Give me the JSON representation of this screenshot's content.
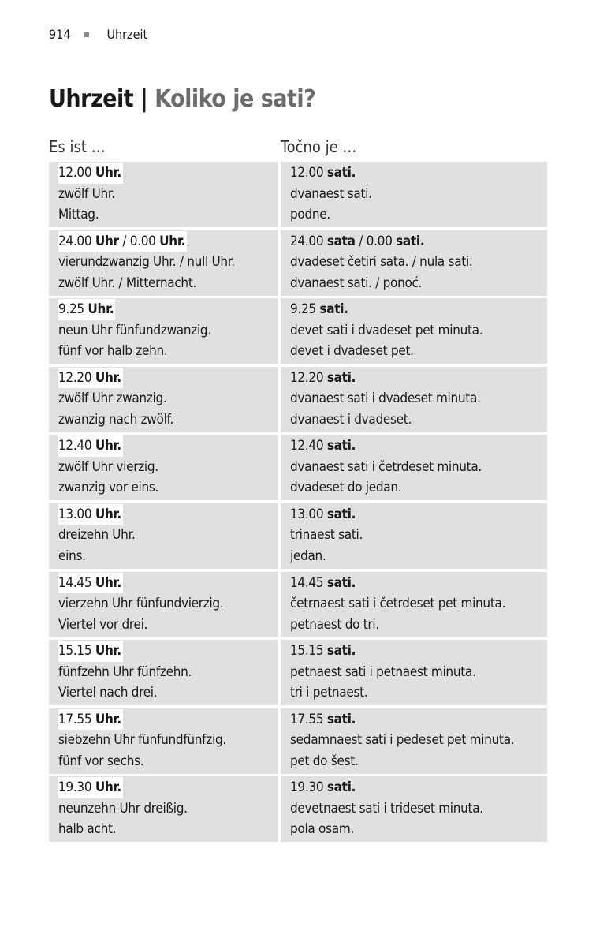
{
  "running_head": {
    "page_number": "914",
    "section": "Uhrzeit"
  },
  "title": {
    "main": "Uhrzeit |",
    "sub": "Koliko je sati?"
  },
  "columns": {
    "left": "Es ist …",
    "right": "Točno je …"
  },
  "rows": [
    {
      "de_head": [
        [
          "12.00 ",
          0
        ],
        [
          "Uhr.",
          1
        ]
      ],
      "de": [
        "zwölf Uhr.",
        "Mittag."
      ],
      "hr_head": [
        [
          "12.00 ",
          0
        ],
        [
          "sati.",
          1
        ]
      ],
      "hr": [
        "dvanaest sati.",
        "podne."
      ]
    },
    {
      "de_head": [
        [
          "24.00 ",
          0
        ],
        [
          "Uhr",
          1
        ],
        [
          " / 0.00 ",
          0
        ],
        [
          "Uhr.",
          1
        ]
      ],
      "de": [
        "vierundzwanzig Uhr. / null Uhr.",
        "zwölf Uhr. / Mitternacht."
      ],
      "hr_head": [
        [
          "24.00 ",
          0
        ],
        [
          "sata",
          1
        ],
        [
          " / 0.00 ",
          0
        ],
        [
          "sati.",
          1
        ]
      ],
      "hr": [
        "dvadeset četiri sata. / nula sati.",
        "dvanaest sati. / ponoć."
      ]
    },
    {
      "de_head": [
        [
          "9.25 ",
          0
        ],
        [
          "Uhr.",
          1
        ]
      ],
      "de": [
        "neun Uhr fünfundzwanzig.",
        "fünf vor halb zehn."
      ],
      "hr_head": [
        [
          "9.25 ",
          0
        ],
        [
          "sati.",
          1
        ]
      ],
      "hr": [
        "devet sati i dvadeset pet minuta.",
        "devet i dvadeset pet."
      ]
    },
    {
      "de_head": [
        [
          "12.20 ",
          0
        ],
        [
          "Uhr.",
          1
        ]
      ],
      "de": [
        "zwölf Uhr zwanzig.",
        "zwanzig nach zwölf."
      ],
      "hr_head": [
        [
          "12.20 ",
          0
        ],
        [
          "sati.",
          1
        ]
      ],
      "hr": [
        "dvanaest sati i dvadeset minuta.",
        "dvanaest i dvadeset."
      ]
    },
    {
      "de_head": [
        [
          "12.40 ",
          0
        ],
        [
          "Uhr.",
          1
        ]
      ],
      "de": [
        "zwölf Uhr vierzig.",
        "zwanzig vor eins."
      ],
      "hr_head": [
        [
          "12.40 ",
          0
        ],
        [
          "sati.",
          1
        ]
      ],
      "hr": [
        "dvanaest sati i četrdeset minuta.",
        "dvadeset do jedan."
      ]
    },
    {
      "de_head": [
        [
          "13.00 ",
          0
        ],
        [
          "Uhr.",
          1
        ]
      ],
      "de": [
        "dreizehn Uhr.",
        "eins."
      ],
      "hr_head": [
        [
          "13.00 ",
          0
        ],
        [
          "sati.",
          1
        ]
      ],
      "hr": [
        "trinaest sati.",
        "jedan."
      ]
    },
    {
      "de_head": [
        [
          "14.45 ",
          0
        ],
        [
          "Uhr.",
          1
        ]
      ],
      "de": [
        "vierzehn Uhr fünfundvierzig.",
        "Viertel vor drei."
      ],
      "hr_head": [
        [
          "14.45 ",
          0
        ],
        [
          "sati.",
          1
        ]
      ],
      "hr": [
        "četrnaest sati i četrdeset pet minuta.",
        "petnaest do tri."
      ]
    },
    {
      "de_head": [
        [
          "15.15 ",
          0
        ],
        [
          "Uhr.",
          1
        ]
      ],
      "de": [
        "fünfzehn Uhr fünfzehn.",
        "Viertel nach drei."
      ],
      "hr_head": [
        [
          "15.15 ",
          0
        ],
        [
          "sati.",
          1
        ]
      ],
      "hr": [
        "petnaest sati i petnaest minuta.",
        "tri i petnaest."
      ]
    },
    {
      "de_head": [
        [
          "17.55 ",
          0
        ],
        [
          "Uhr.",
          1
        ]
      ],
      "de": [
        "siebzehn Uhr fünfundfünfzig.",
        "fünf vor sechs."
      ],
      "hr_head": [
        [
          "17.55 ",
          0
        ],
        [
          "sati.",
          1
        ]
      ],
      "hr": [
        "sedamnaest sati i pedeset pet minuta.",
        "pet do šest."
      ]
    },
    {
      "de_head": [
        [
          "19.30 ",
          0
        ],
        [
          "Uhr.",
          1
        ]
      ],
      "de": [
        "neunzehn Uhr dreißig.",
        "halb acht."
      ],
      "hr_head": [
        [
          "19.30 ",
          0
        ],
        [
          "sati.",
          1
        ]
      ],
      "hr": [
        "devetnaest sati i trideset minuta.",
        "pola osam."
      ]
    }
  ]
}
